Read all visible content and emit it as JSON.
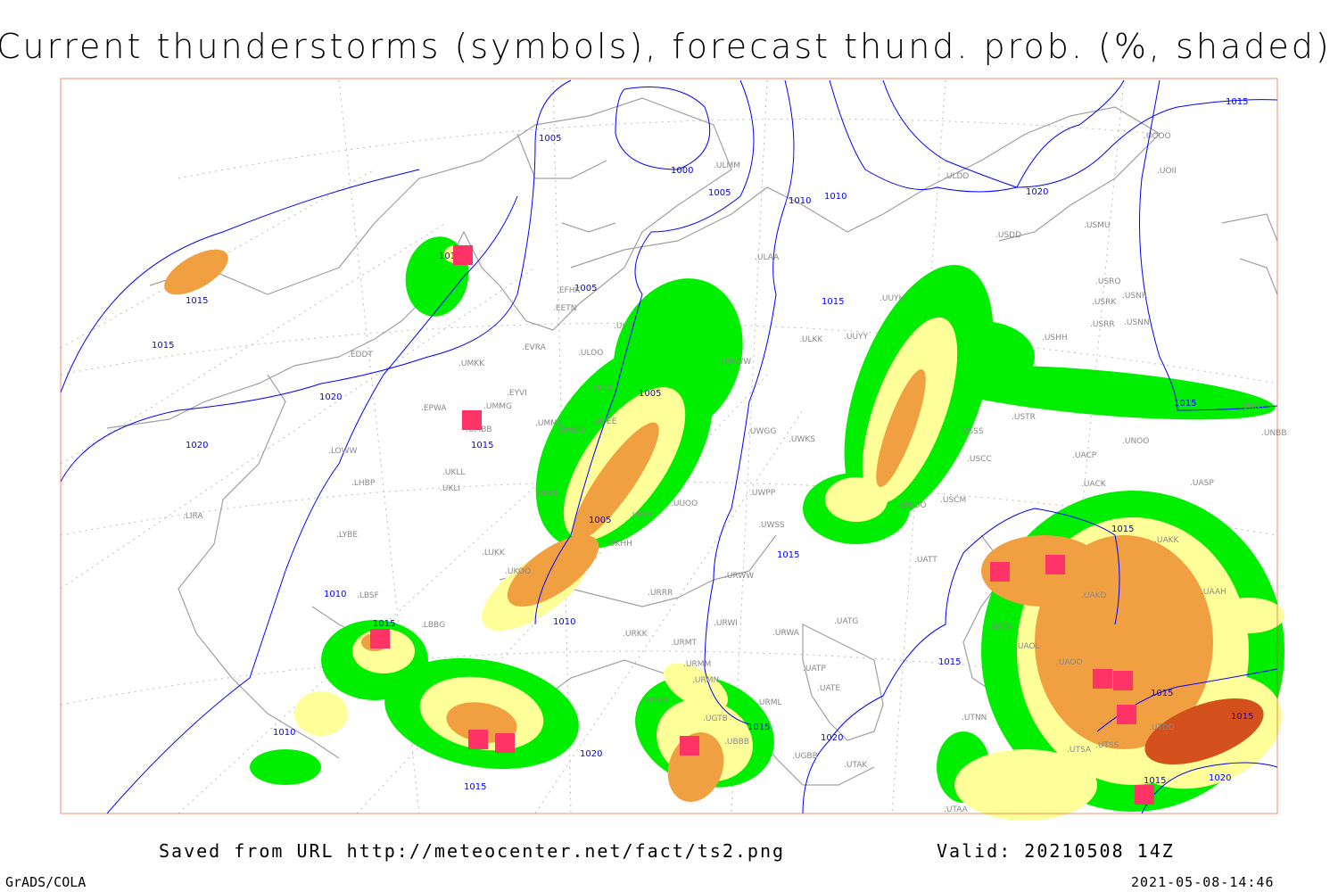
{
  "title": "Current thunderstorms (symbols), forecast thund. prob. (%, shaded)",
  "footer": {
    "saved_from": "Saved from URL http://meteocenter.net/fact/ts2.png",
    "valid": "Valid: 20210508 14Z",
    "software": "GrADS/COLA",
    "generated": "2021-05-08-14:46"
  },
  "legend_colors": {
    "low_prob": "#00ee00",
    "mid_low_prob": "#ffff99",
    "mid_high_prob": "#f0a040",
    "high_prob": "#d4501c",
    "thunderstorm_symbol": "#ff3366",
    "isobars": "#0000ff",
    "coastlines": "#a0a0a0"
  },
  "isobar_labels": [
    "1005",
    "1000",
    "1005",
    "1010",
    "1010",
    "1020",
    "1015",
    "1010",
    "1015",
    "1005",
    "1015",
    "1020",
    "1020",
    "1015",
    "1005",
    "1005",
    "1015",
    "1010",
    "1015",
    "1010",
    "1015",
    "1020",
    "1015",
    "1015",
    "1015",
    "1015",
    "1015",
    "1020",
    "1015",
    "1015",
    "1010",
    "1020",
    "1015"
  ],
  "stations": [
    "EDDT",
    "EPWA",
    "LOWW",
    "LHBP",
    "LIRA",
    "LYBE",
    "LBSF",
    "LBBG",
    "UMKK",
    "UMMG",
    "UMMS",
    "UMBB",
    "UKLL",
    "UKLI",
    "UKKK",
    "UKHH",
    "LUKK",
    "UKOO",
    "ULLI",
    "ULOL",
    "ULOO",
    "EVRA",
    "EETN",
    "EFHK",
    "EYVI",
    "ULMM",
    "ULAA",
    "ULDD",
    "ULKK",
    "USDD",
    "USMU",
    "USRO",
    "USRK",
    "USNR",
    "USRR",
    "USNN",
    "USHH",
    "USTR",
    "USSS",
    "USCC",
    "USCM",
    "UNOO",
    "UACP",
    "UACK",
    "UASP",
    "UAKK",
    "UAAH",
    "UAKD",
    "UATA",
    "UAOL",
    "UAOO",
    "UTNN",
    "UATT",
    "UWOO",
    "UUYY",
    "UUYH",
    "UWKS",
    "UWGG",
    "UWPP",
    "UWSS",
    "URWW",
    "URWI",
    "URRR",
    "UKFF",
    "URKK",
    "URMT",
    "URMM",
    "URMN",
    "URML",
    "UATG",
    "URWA",
    "UATP",
    "UATE",
    "UGTB",
    "UGSB",
    "UBBB",
    "UGBB",
    "UTAK",
    "UUOO",
    "UMOO",
    "UUEE",
    "UWWW",
    "UOOO",
    "UOII",
    "UNBB",
    "UNNT",
    "UTAA",
    "UTSA",
    "UTSS",
    "UTDD"
  ]
}
